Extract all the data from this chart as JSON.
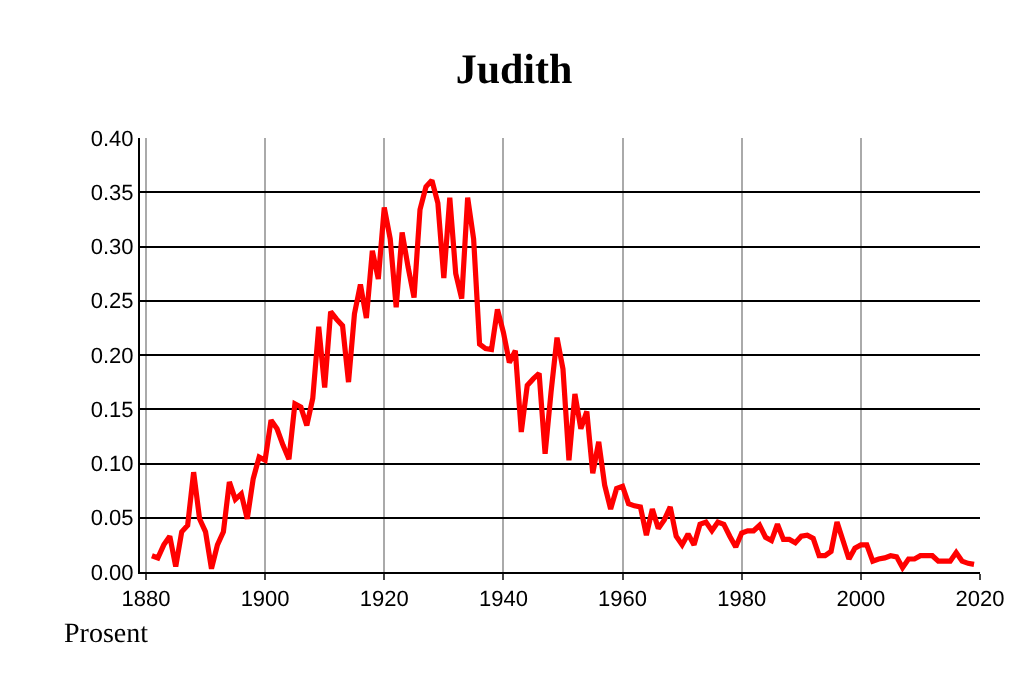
{
  "chart_data": {
    "type": "line",
    "title": "Judith",
    "annotations": [
      "Prosent"
    ],
    "x": [
      1881,
      1882,
      1883,
      1884,
      1885,
      1886,
      1887,
      1888,
      1889,
      1890,
      1891,
      1892,
      1893,
      1894,
      1895,
      1896,
      1897,
      1898,
      1899,
      1900,
      1901,
      1902,
      1903,
      1904,
      1905,
      1906,
      1907,
      1908,
      1909,
      1910,
      1911,
      1912,
      1913,
      1914,
      1915,
      1916,
      1917,
      1918,
      1919,
      1920,
      1921,
      1922,
      1923,
      1924,
      1925,
      1926,
      1927,
      1928,
      1929,
      1930,
      1931,
      1932,
      1933,
      1934,
      1935,
      1936,
      1937,
      1938,
      1939,
      1940,
      1941,
      1942,
      1943,
      1944,
      1945,
      1946,
      1947,
      1948,
      1949,
      1950,
      1951,
      1952,
      1953,
      1954,
      1955,
      1956,
      1957,
      1958,
      1959,
      1960,
      1961,
      1962,
      1963,
      1964,
      1965,
      1966,
      1967,
      1968,
      1969,
      1970,
      1971,
      1972,
      1973,
      1974,
      1975,
      1976,
      1977,
      1978,
      1979,
      1980,
      1981,
      1982,
      1983,
      1984,
      1985,
      1986,
      1987,
      1988,
      1989,
      1990,
      1991,
      1992,
      1993,
      1994,
      1995,
      1996,
      1997,
      1998,
      1999,
      2000,
      2001,
      2002,
      2003,
      2004,
      2005,
      2006,
      2007,
      2008,
      2009,
      2010,
      2011,
      2012,
      2013,
      2014,
      2015,
      2016,
      2017,
      2018,
      2019
    ],
    "series": [
      {
        "color": "#ff0000",
        "values": [
          0.015,
          0.013,
          0.025,
          0.033,
          0.005,
          0.037,
          0.043,
          0.092,
          0.049,
          0.037,
          0.003,
          0.025,
          0.037,
          0.083,
          0.067,
          0.072,
          0.049,
          0.086,
          0.106,
          0.103,
          0.14,
          0.132,
          0.117,
          0.104,
          0.155,
          0.152,
          0.135,
          0.16,
          0.226,
          0.17,
          0.24,
          0.233,
          0.227,
          0.175,
          0.238,
          0.265,
          0.234,
          0.296,
          0.27,
          0.336,
          0.307,
          0.244,
          0.313,
          0.281,
          0.253,
          0.334,
          0.355,
          0.361,
          0.34,
          0.271,
          0.345,
          0.275,
          0.252,
          0.345,
          0.307,
          0.21,
          0.206,
          0.205,
          0.242,
          0.221,
          0.193,
          0.204,
          0.129,
          0.172,
          0.178,
          0.183,
          0.109,
          0.166,
          0.216,
          0.187,
          0.103,
          0.164,
          0.132,
          0.148,
          0.091,
          0.12,
          0.08,
          0.058,
          0.077,
          0.079,
          0.063,
          0.061,
          0.06,
          0.034,
          0.058,
          0.04,
          0.048,
          0.06,
          0.033,
          0.025,
          0.035,
          0.025,
          0.044,
          0.046,
          0.038,
          0.046,
          0.044,
          0.033,
          0.023,
          0.036,
          0.038,
          0.038,
          0.043,
          0.032,
          0.029,
          0.044,
          0.03,
          0.03,
          0.027,
          0.033,
          0.034,
          0.031,
          0.015,
          0.015,
          0.019,
          0.046,
          0.029,
          0.012,
          0.022,
          0.025,
          0.025,
          0.01,
          0.012,
          0.013,
          0.015,
          0.014,
          0.004,
          0.012,
          0.012,
          0.015,
          0.015,
          0.015,
          0.01,
          0.01,
          0.01,
          0.018,
          0.01,
          0.008,
          0.007
        ]
      }
    ],
    "xlim": [
      1879,
      2020
    ],
    "xticks": [
      1880,
      1900,
      1920,
      1940,
      1960,
      1980,
      2000,
      2020
    ],
    "ylim": [
      0,
      0.4
    ],
    "yticks": [
      {
        "value": 0,
        "label": "0.00"
      },
      {
        "value": 0.05,
        "label": "0.05"
      },
      {
        "value": 0.1,
        "label": "0.10"
      },
      {
        "value": 0.15,
        "label": "0.15"
      },
      {
        "value": 0.2,
        "label": "0.20"
      },
      {
        "value": 0.25,
        "label": "0.25"
      },
      {
        "value": 0.3,
        "label": "0.30"
      },
      {
        "value": 0.35,
        "label": "0.35"
      },
      {
        "value": 0.4,
        "label": "0.40"
      }
    ],
    "grid": true,
    "marker": "none",
    "line_style": "solid"
  }
}
